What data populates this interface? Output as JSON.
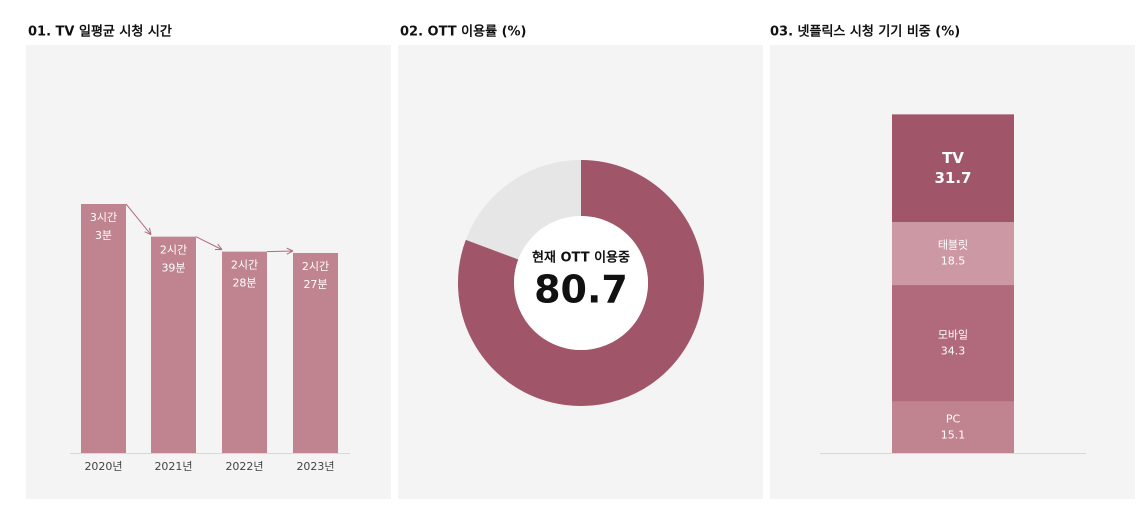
{
  "chart_data": [
    {
      "type": "bar",
      "title": "01. TV 일평균 시청 시간",
      "categories": [
        "2020년",
        "2021년",
        "2022년",
        "2023년"
      ],
      "values": [
        183,
        159,
        148,
        147
      ],
      "value_labels": [
        [
          "3시간",
          "3분"
        ],
        [
          "2시간",
          "39분"
        ],
        [
          "2시간",
          "28분"
        ],
        [
          "2시간",
          "27분"
        ]
      ],
      "color": "#c08390",
      "arrow_color": "#b06a7c"
    },
    {
      "type": "donut",
      "title": "02. OTT 이용률 (%)",
      "center_label": "현재 OTT 이용중",
      "values": [
        80.7
      ],
      "color": "#a05568",
      "track_color": "#e6e6e6"
    },
    {
      "type": "stacked-bar",
      "title": "03. 넷플릭스 시청 기기 비중 (%)",
      "categories": [
        "TV",
        "태블릿",
        "모바일",
        "PC"
      ],
      "values": [
        31.7,
        18.5,
        34.3,
        15.1
      ],
      "colors": [
        "#a05568",
        "#cc98a3",
        "#b06a7c",
        "#c08390"
      ]
    }
  ]
}
